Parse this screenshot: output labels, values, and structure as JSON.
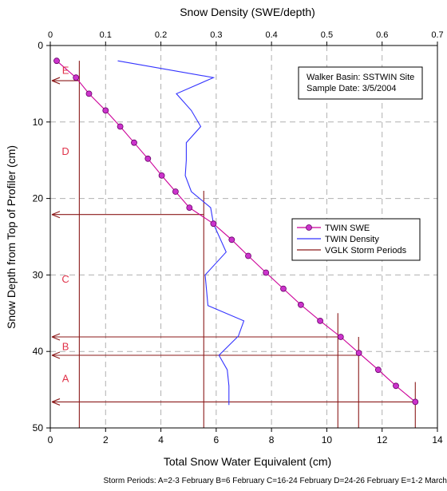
{
  "chart_data": {
    "type": "line",
    "top_axis": {
      "label": "Snow Density (SWE/depth)",
      "range": [
        0,
        0.7
      ],
      "ticks": [
        0,
        0.1,
        0.2,
        0.3,
        0.4,
        0.5,
        0.6,
        0.7
      ],
      "tick_labels": [
        "0",
        "0.1",
        "0.2",
        "0.3",
        "0.4",
        "0.5",
        "0.6",
        "0.7"
      ]
    },
    "bottom_axis": {
      "label": "Total Snow Water Equivalent (cm)",
      "range": [
        0,
        14
      ],
      "ticks": [
        0,
        2,
        4,
        6,
        8,
        10,
        12,
        14
      ],
      "tick_labels": [
        "0",
        "2",
        "4",
        "6",
        "8",
        "10",
        "12",
        "14"
      ]
    },
    "left_axis": {
      "label": "Snow Depth from Top of Profiler (cm)",
      "range": [
        0,
        50
      ],
      "inverted": true,
      "ticks": [
        0,
        10,
        20,
        30,
        40,
        50
      ],
      "tick_labels": [
        "0",
        "10",
        "20",
        "30",
        "40",
        "50"
      ]
    },
    "grid": "dashed at major ticks",
    "series": [
      {
        "name": "TWIN SWE",
        "color": "#cc0099",
        "marker": "circle",
        "axis": "bottom",
        "points": [
          [
            0.23,
            2
          ],
          [
            0.93,
            4.2
          ],
          [
            1.4,
            6.3
          ],
          [
            2.0,
            8.5
          ],
          [
            2.53,
            10.6
          ],
          [
            3.03,
            12.7
          ],
          [
            3.53,
            14.8
          ],
          [
            4.03,
            17.0
          ],
          [
            4.53,
            19.1
          ],
          [
            5.03,
            21.2
          ],
          [
            5.9,
            23.3
          ],
          [
            6.56,
            25.4
          ],
          [
            7.16,
            27.5
          ],
          [
            7.8,
            29.7
          ],
          [
            8.43,
            31.8
          ],
          [
            9.06,
            33.9
          ],
          [
            9.76,
            36.0
          ],
          [
            10.5,
            38.1
          ],
          [
            11.16,
            40.2
          ],
          [
            11.86,
            42.4
          ],
          [
            12.5,
            44.5
          ],
          [
            13.2,
            46.6
          ]
        ]
      },
      {
        "name": "TWIN Density",
        "color": "#3333ff",
        "marker": "none",
        "axis": "top",
        "points": [
          [
            0.122,
            2
          ],
          [
            0.295,
            4.2
          ],
          [
            0.228,
            6.3
          ],
          [
            0.255,
            8.5
          ],
          [
            0.272,
            10.6
          ],
          [
            0.246,
            12.7
          ],
          [
            0.246,
            15
          ],
          [
            0.244,
            17
          ],
          [
            0.255,
            19.1
          ],
          [
            0.29,
            21.2
          ],
          [
            0.295,
            23.3
          ],
          [
            0.318,
            27
          ],
          [
            0.28,
            30
          ],
          [
            0.285,
            34
          ],
          [
            0.35,
            36
          ],
          [
            0.34,
            38
          ],
          [
            0.305,
            40.5
          ],
          [
            0.32,
            42.4
          ],
          [
            0.323,
            44.5
          ],
          [
            0.323,
            47
          ]
        ]
      },
      {
        "name": "VGLK Storm Periods",
        "color": "#8b1a1a",
        "marker": "none",
        "axis": "bottom",
        "markers": [
          {
            "depth": 4.6,
            "swe": 1.05,
            "from": 2
          },
          {
            "depth": 22.1,
            "swe": 5.55,
            "from": 19
          },
          {
            "depth": 38.1,
            "swe": 10.4,
            "from": 35
          },
          {
            "depth": 40.5,
            "swe": 11.15,
            "from": 38.1
          },
          {
            "depth": 46.6,
            "swe": 13.2,
            "from": 44
          }
        ]
      }
    ],
    "legend": {
      "position": "middle-right",
      "entries": [
        "TWIN SWE",
        "TWIN Density",
        "VGLK Storm Periods"
      ]
    },
    "annotation_box": {
      "position": "top-right",
      "lines": [
        "Walker Basin: SSTWIN Site",
        "Sample Date: 3/5/2004"
      ]
    },
    "period_labels": [
      {
        "text": "E",
        "depth": 3.2,
        "swe": 0.55
      },
      {
        "text": "D",
        "depth": 13.8,
        "swe": 0.55
      },
      {
        "text": "C",
        "depth": 30.5,
        "swe": 0.55
      },
      {
        "text": "B",
        "depth": 39.3,
        "swe": 0.55
      },
      {
        "text": "A",
        "depth": 43.5,
        "swe": 0.55
      }
    ],
    "footnote": "Storm Periods: A=2-3 February  B=6 February  C=16-24 February  D=24-26 February  E=1-2 March",
    "colors": {
      "grid": "#b0b0b0",
      "axis": "#000000",
      "period_label": "#e0334a"
    }
  }
}
